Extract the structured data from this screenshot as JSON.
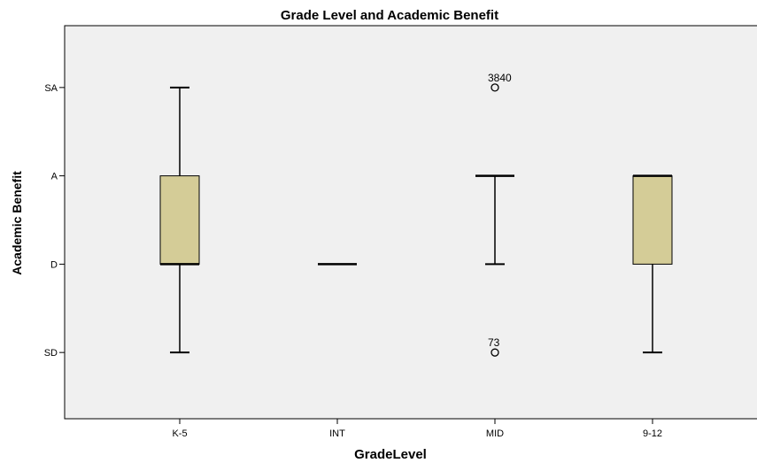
{
  "chart_data": {
    "type": "boxplot",
    "title": "Grade Level and Academic Benefit",
    "xlabel": "GradeLevel",
    "ylabel": "Academic Benefit",
    "categories": [
      "K-5",
      "INT",
      "MID",
      "9-12"
    ],
    "y_levels": [
      "SD",
      "D",
      "A",
      "SA"
    ],
    "y_level_values": [
      1,
      2,
      3,
      4
    ],
    "ylim": [
      0.25,
      4.7
    ],
    "boxes": [
      {
        "category": "K-5",
        "whisker_low": 1,
        "q1": 2,
        "median": 2,
        "q3": 3,
        "whisker_high": 4,
        "outliers": []
      },
      {
        "category": "INT",
        "whisker_low": 2,
        "q1": 2,
        "median": 2,
        "q3": 2,
        "whisker_high": 2,
        "outliers": []
      },
      {
        "category": "MID",
        "whisker_low": 2,
        "q1": 3,
        "median": 3,
        "q3": 3,
        "whisker_high": 3,
        "outliers": [
          {
            "value": 4,
            "label": "3840"
          },
          {
            "value": 1,
            "label": "73"
          }
        ]
      },
      {
        "category": "9-12",
        "whisker_low": 1,
        "q1": 2,
        "median": 3,
        "q3": 3,
        "whisker_high": 3,
        "outliers": []
      }
    ],
    "box_color": "#d4cc97",
    "plot_background": "#f0f0f0",
    "grid": false,
    "legend": "none"
  }
}
